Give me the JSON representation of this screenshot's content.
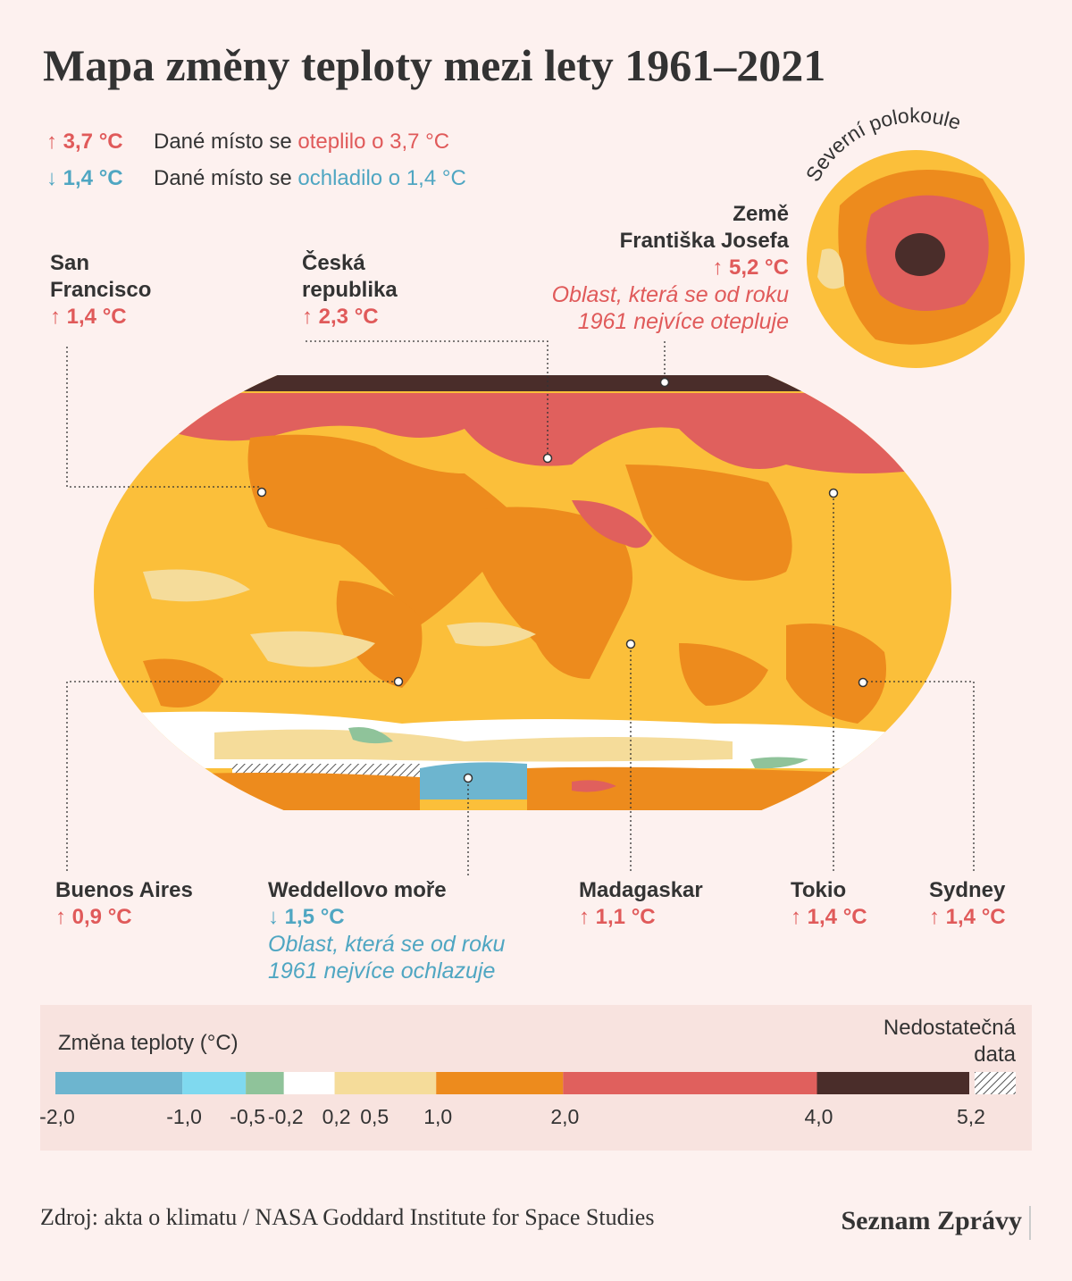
{
  "title": "Mapa změny teploty mezi lety 1961–2021",
  "key": [
    {
      "value": "↑ 3,7 °C",
      "text": "Dané místo se ",
      "highlight": "oteplilo o 3,7 °C"
    },
    {
      "value": "↓ 1,4 °C",
      "text": "Dané místo se ",
      "highlight": "ochladilo o 1,4 °C"
    }
  ],
  "inset_label": "Severní polokoule",
  "annotations": [
    {
      "name": [
        "San",
        "Francisco"
      ],
      "value": "↑ 1,4 °C"
    },
    {
      "name": [
        "Česká",
        "republika"
      ],
      "value": "↑ 2,3 °C"
    },
    {
      "name": [
        "Země",
        "Františka Josefa"
      ],
      "value": "↑ 5,2 °C",
      "note": [
        "Oblast, která se od roku",
        "1961 nejvíce otepluje"
      ]
    },
    {
      "name": [
        "Buenos Aires"
      ],
      "value": "↑ 0,9 °C"
    },
    {
      "name": [
        "Weddellovo moře"
      ],
      "value": "↓ 1,5 °C",
      "note": [
        "Oblast, která se od roku",
        "1961 nejvíce ochlazuje"
      ]
    },
    {
      "name": [
        "Madagaskar"
      ],
      "value": "↑ 1,1 °C"
    },
    {
      "name": [
        "Tokio"
      ],
      "value": "↑ 1,4 °C"
    },
    {
      "name": [
        "Sydney"
      ],
      "value": "↑ 1,4 °C"
    }
  ],
  "legend": {
    "title": "Změna teploty (°C)",
    "no_data": [
      "Nedostatečná",
      "data"
    ],
    "bins": [
      -2,
      -1,
      -0.5,
      -0.2,
      0.2,
      1,
      2,
      4,
      5.2
    ],
    "colors": [
      "#6db5cf",
      "#7fd9ef",
      "#8fc39a",
      "#ffffff",
      "#f5dc9a",
      "#ed8b1d",
      "#e0605d",
      "#4a2d2a"
    ],
    "xlim": [
      -2,
      5.2
    ],
    "xticks": [
      {
        "value": -2,
        "label": "-2,0"
      },
      {
        "value": -1,
        "label": "-1,0"
      },
      {
        "value": -0.5,
        "label": "-0,5"
      },
      {
        "value": -0.2,
        "label": "-0,2"
      },
      {
        "value": 0.2,
        "label": "0,2"
      },
      {
        "value": 0.5,
        "label": "0,5"
      },
      {
        "value": 1,
        "label": "1,0"
      },
      {
        "value": 2,
        "label": "2,0"
      },
      {
        "value": 4,
        "label": "4,0"
      },
      {
        "value": 5.2,
        "label": "5,2"
      }
    ]
  },
  "source": "Zdroj: akta o klimatu / NASA Goddard Institute for Space Studies",
  "brand": "Seznam Zprávy"
}
